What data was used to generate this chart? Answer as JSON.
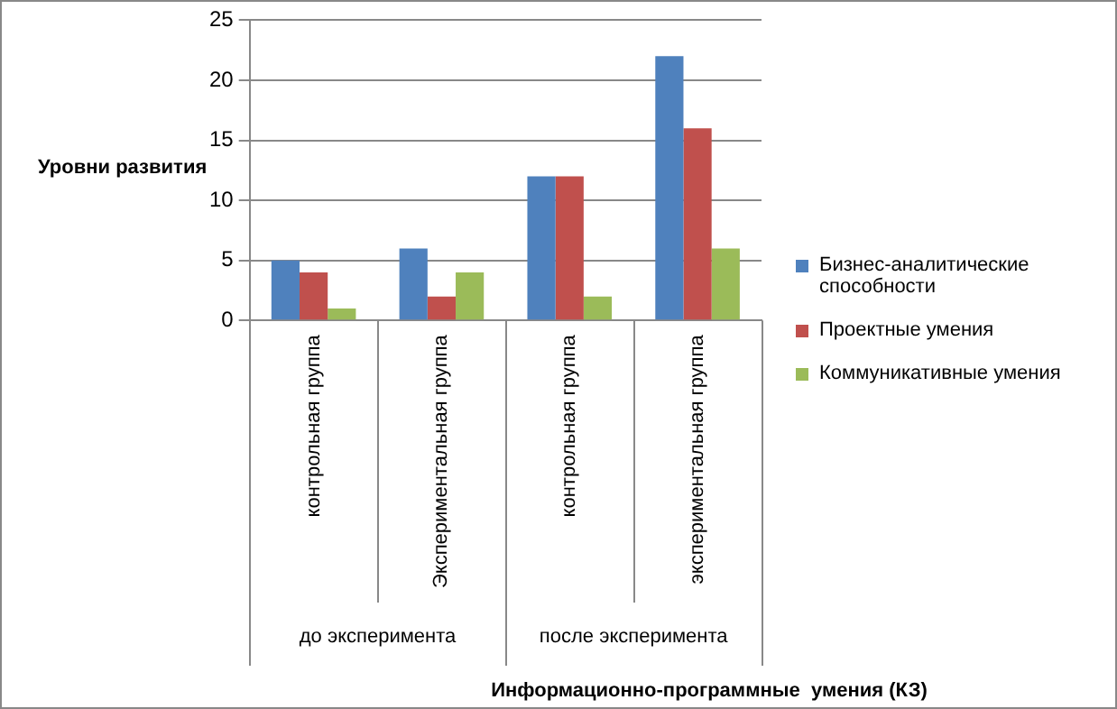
{
  "chart_data": {
    "type": "bar",
    "ylabel": "Уровни развития",
    "xlabel": "Информационно-программные  умения (КЗ)",
    "categories": [
      "контрольная группа",
      "Экспериментальная группа",
      "контрольная группа",
      "экспериментальная группа"
    ],
    "annotations": [
      "до эксперимента",
      "после эксперимента"
    ],
    "series": [
      {
        "name": "Бизнес-аналитические способности",
        "color": "#4f81bd",
        "values": [
          5,
          6,
          12,
          22
        ]
      },
      {
        "name": "Проектные умения",
        "color": "#c0504d",
        "values": [
          4,
          2,
          12,
          16
        ]
      },
      {
        "name": "Коммуникативные умения",
        "color": "#9bbb59",
        "values": [
          1,
          4,
          2,
          6
        ]
      }
    ],
    "ylim": [
      0,
      25
    ],
    "yticks": [
      0,
      5,
      10,
      15,
      20,
      25
    ],
    "grid": "y",
    "legend": "right"
  }
}
